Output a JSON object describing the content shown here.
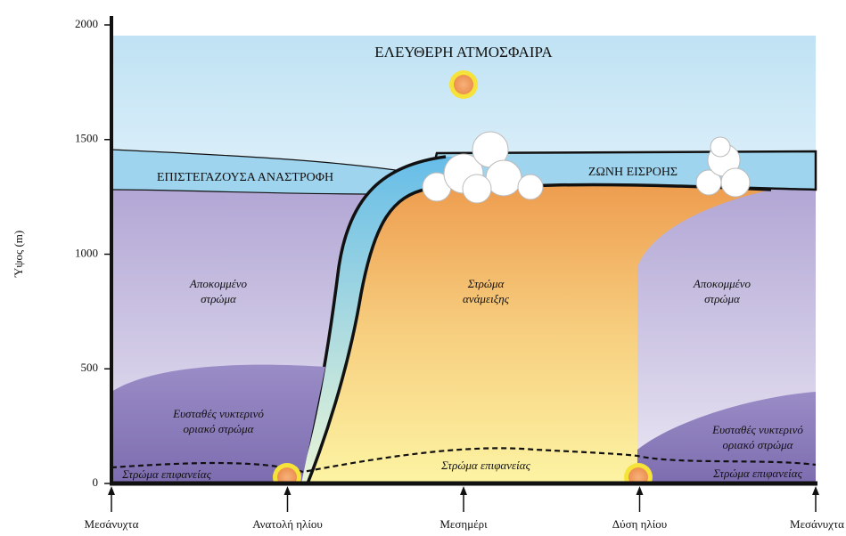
{
  "title": "ΕΛΕΥΘΕΡΗ ΑΤΜΟΣΦΑΙΡΑ",
  "axis": {
    "label": "Ύψος (m)",
    "ticks": [
      "0",
      "500",
      "1000",
      "1500",
      "2000"
    ]
  },
  "times": [
    "Μεσάνυχτα",
    "Ανατολή ηλίου",
    "Μεσημέρι",
    "Δύση ηλίου",
    "Μεσάνυχτα"
  ],
  "capping_inversion": "ΕΠΙΣΤΕΓΑΖΟΥΣΑ ΑΝΑΣΤΡΟΦΗ",
  "entrainment_zone": "ΖΩΝΗ ΕΙΣΡΟΗΣ",
  "residual_left": [
    "Αποκομμένο",
    "στρώμα"
  ],
  "mixed_layer": [
    "Στρώμα",
    "ανάμειξης"
  ],
  "residual_right": [
    "Αποκομμένο",
    "στρώμα"
  ],
  "stable_left": [
    "Ευσταθές νυκτερινό",
    "οριακό στρώμα"
  ],
  "stable_right": [
    "Ευσταθές νυκτερινό",
    "οριακό στρώμα"
  ],
  "surface_left": "Στρώμα επιφανείας",
  "surface_middle": "Στρώμα επιφανείας",
  "surface_right": "Στρώμα επιφανείας"
}
